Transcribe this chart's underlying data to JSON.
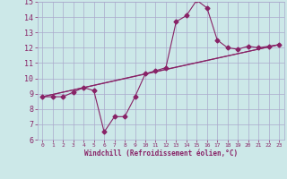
{
  "xlabel": "Windchill (Refroidissement éolien,°C)",
  "background_color": "#cce8e8",
  "grid_color": "#aaaacc",
  "line_color": "#882266",
  "xlim": [
    -0.5,
    23.5
  ],
  "ylim": [
    6,
    15
  ],
  "xticks": [
    0,
    1,
    2,
    3,
    4,
    5,
    6,
    7,
    8,
    9,
    10,
    11,
    12,
    13,
    14,
    15,
    16,
    17,
    18,
    19,
    20,
    21,
    22,
    23
  ],
  "yticks": [
    6,
    7,
    8,
    9,
    10,
    11,
    12,
    13,
    14,
    15
  ],
  "line1_x": [
    0,
    1,
    2,
    3,
    4,
    5,
    6,
    7,
    8,
    9,
    10,
    11,
    12,
    13,
    14,
    15,
    16,
    17,
    18,
    19,
    20,
    21,
    22,
    23
  ],
  "line1_y": [
    8.8,
    8.8,
    8.8,
    9.1,
    9.4,
    9.2,
    6.5,
    7.5,
    7.5,
    8.8,
    10.3,
    10.5,
    10.7,
    13.7,
    14.1,
    15.1,
    14.6,
    12.5,
    12.0,
    11.9,
    12.1,
    12.0,
    12.1,
    12.2
  ],
  "line2_x": [
    0,
    10,
    23
  ],
  "line2_y": [
    8.8,
    10.3,
    12.2
  ],
  "line3_x": [
    0,
    23
  ],
  "line3_y": [
    8.8,
    12.2
  ],
  "marker_size": 2.5,
  "line_width": 0.8,
  "xlabel_fontsize": 5.5,
  "xtick_fontsize": 4.5,
  "ytick_fontsize": 6.0
}
